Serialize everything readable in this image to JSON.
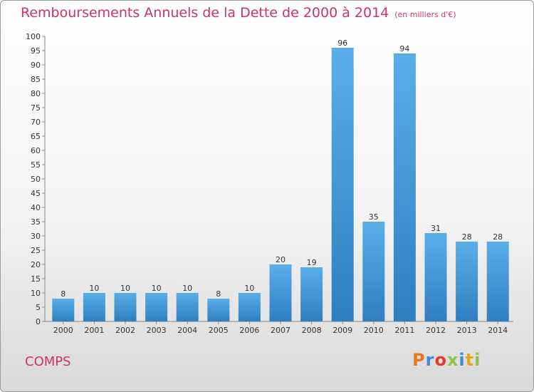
{
  "header": {
    "title": "Remboursements Annuels de la Dette de 2000 à 2014",
    "subtitle": "(en milliers d'€)"
  },
  "footer": {
    "commune": "COMPS",
    "logo_text": "Proxiti",
    "logo_colors": [
      "#e8771a",
      "#3c8dd6",
      "#e83a2c",
      "#8bc34a",
      "#3c8dd6",
      "#e8a21a",
      "#8bc34a"
    ]
  },
  "chart_data": {
    "type": "bar",
    "categories": [
      "2000",
      "2001",
      "2002",
      "2003",
      "2004",
      "2005",
      "2006",
      "2007",
      "2008",
      "2009",
      "2010",
      "2011",
      "2012",
      "2013",
      "2014"
    ],
    "values": [
      8,
      10,
      10,
      10,
      10,
      8,
      10,
      20,
      19,
      96,
      35,
      94,
      31,
      28,
      28
    ],
    "ylim": [
      0,
      100
    ],
    "ytick_step": 5,
    "grid": false,
    "bar_color_top": "#5aaee8",
    "bar_color_bottom": "#2f7fc0"
  }
}
